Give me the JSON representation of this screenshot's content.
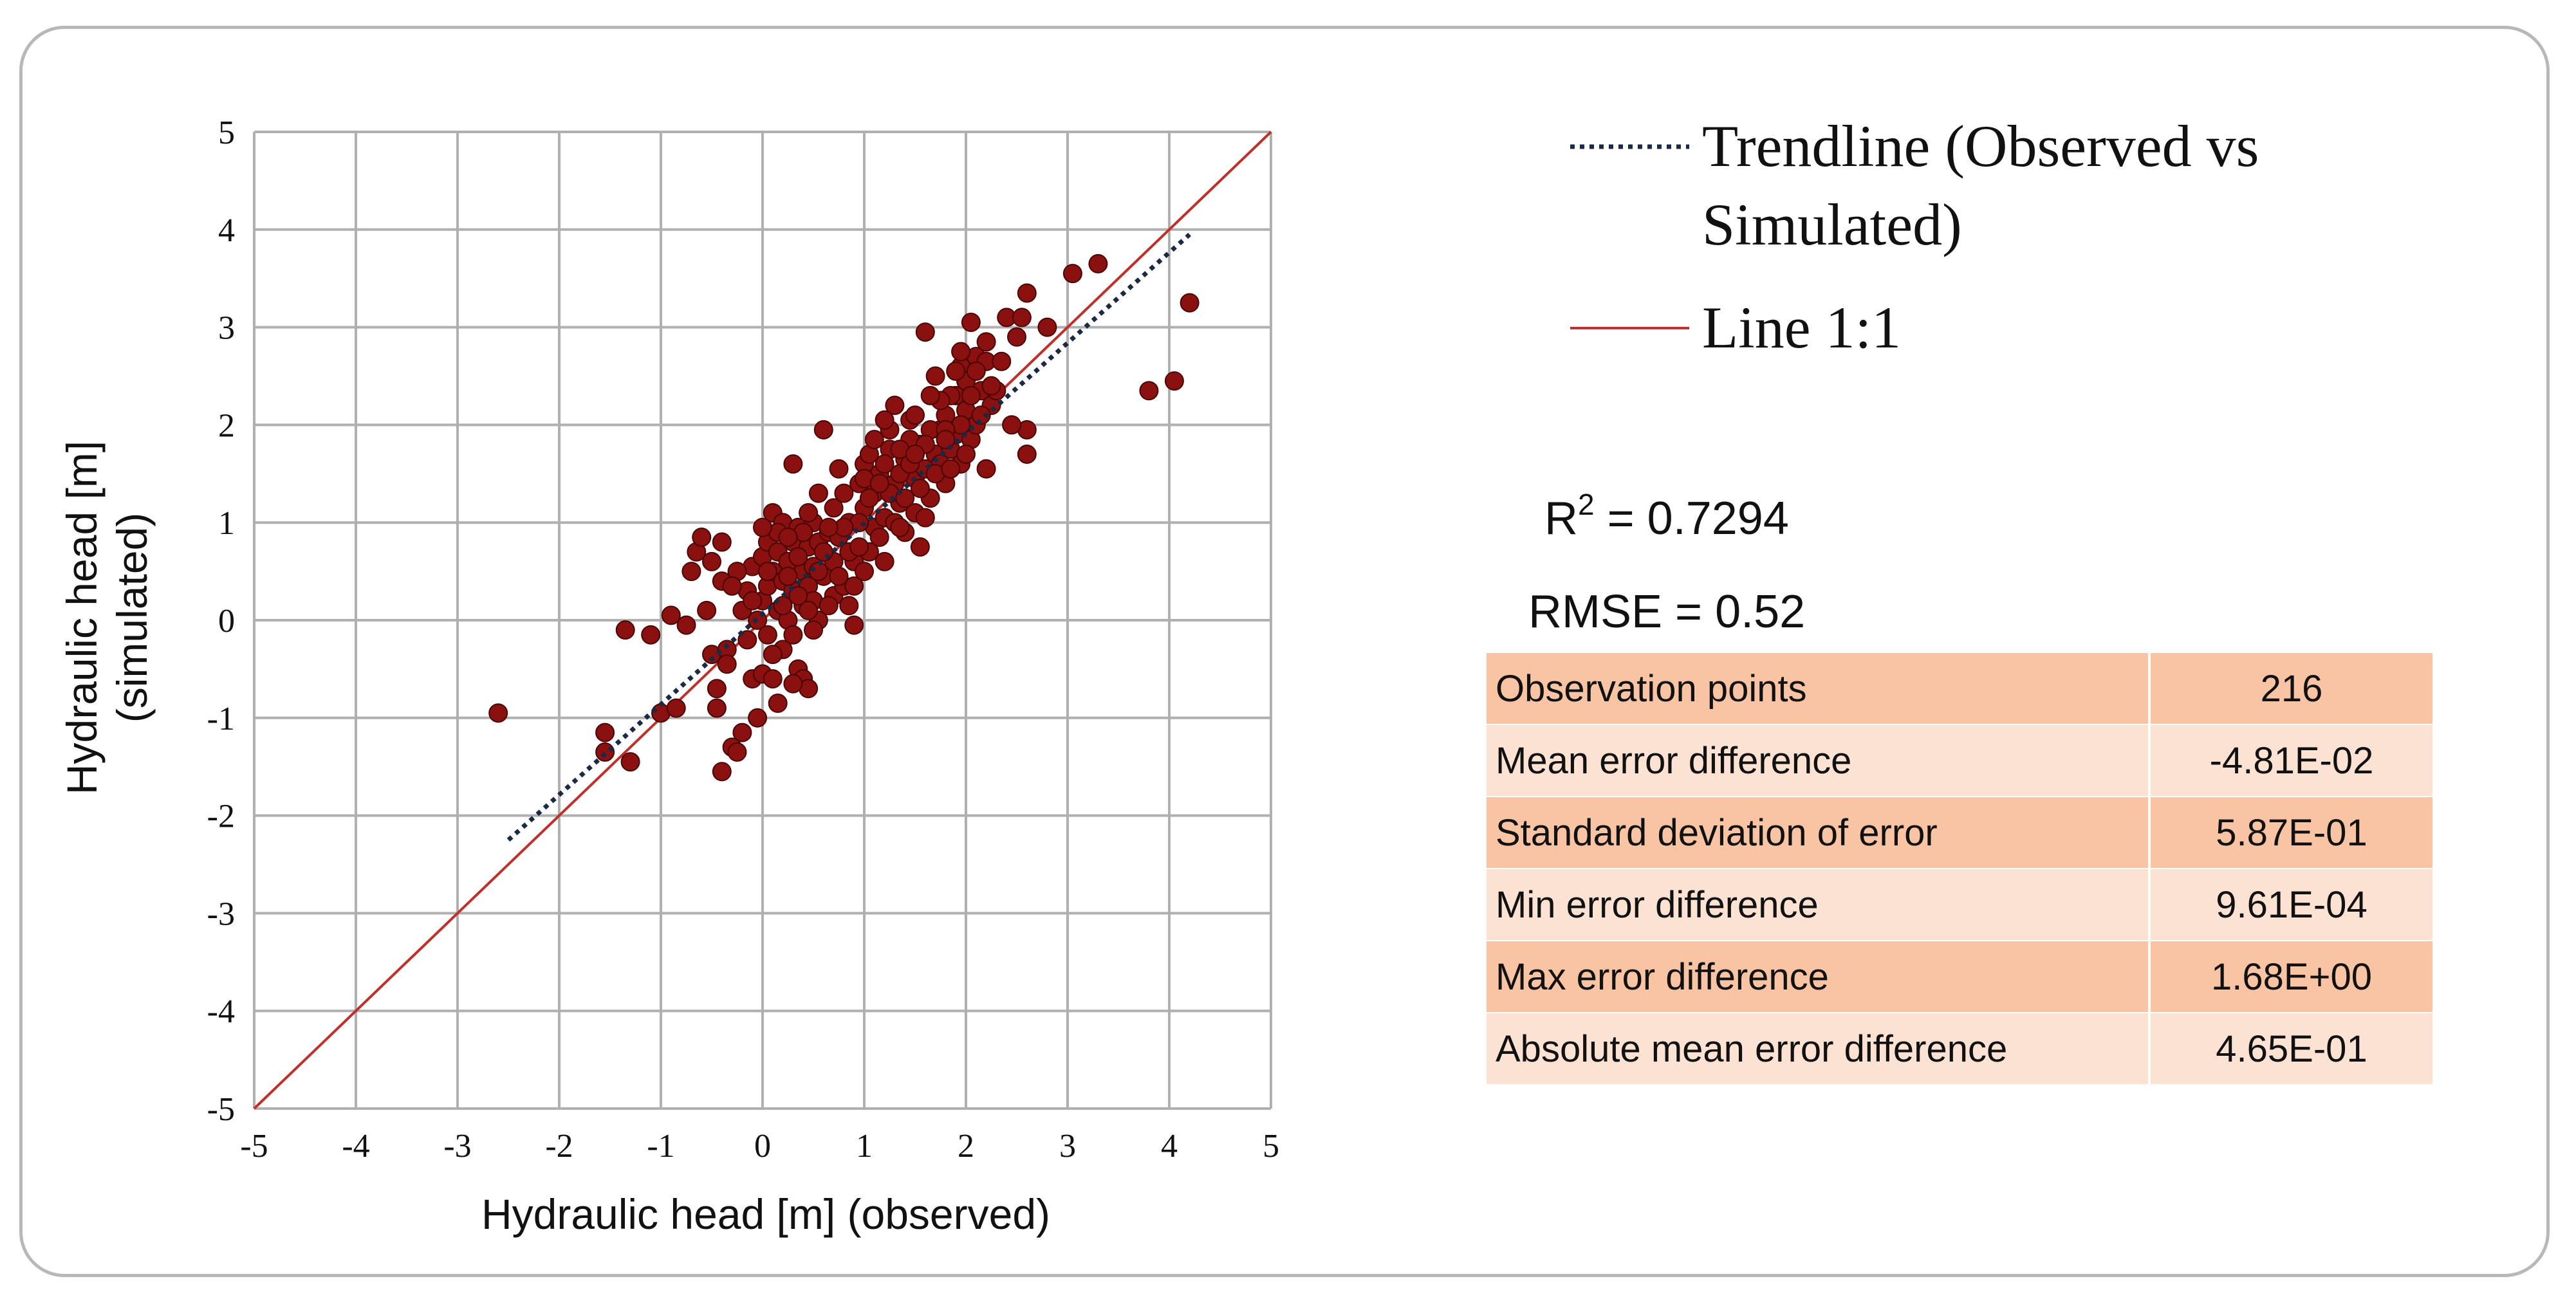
{
  "chart_data": {
    "type": "scatter",
    "xlabel": "Hydraulic head [m] (observed)",
    "ylabel_line1": "Hydraulic head [m]",
    "ylabel_line2": "(simulated)",
    "xlim": [
      -5,
      5
    ],
    "ylim": [
      -5,
      5
    ],
    "xticks": [
      -5,
      -4,
      -3,
      -2,
      -1,
      0,
      1,
      2,
      3,
      4,
      5
    ],
    "yticks": [
      -5,
      -4,
      -3,
      -2,
      -1,
      0,
      1,
      2,
      3,
      4,
      5
    ],
    "grid": true,
    "point_color": "#8b1010",
    "identity_line": {
      "name": "Line 1:1",
      "color": "#c0302a",
      "from": [
        -5,
        -5
      ],
      "to": [
        5,
        5
      ]
    },
    "trendline": {
      "name": "Trendline (Observed vs Simulated)",
      "color": "#1a2a44",
      "from": [
        -2.5,
        -2.25
      ],
      "to": [
        4.2,
        3.95
      ]
    },
    "legend": [
      {
        "label_line1": "Trendline (Observed vs",
        "label_line2": "Simulated)",
        "style": "dotted"
      },
      {
        "label_line1": "Line 1:1",
        "style": "solid"
      }
    ],
    "points": [
      [
        -2.6,
        -0.95
      ],
      [
        -1.55,
        -1.15
      ],
      [
        -1.55,
        -1.35
      ],
      [
        -1.35,
        -0.1
      ],
      [
        -1.3,
        -1.45
      ],
      [
        -1.1,
        -0.15
      ],
      [
        -1.0,
        -0.95
      ],
      [
        -0.9,
        0.05
      ],
      [
        -0.85,
        -0.9
      ],
      [
        -0.75,
        -0.05
      ],
      [
        -0.7,
        0.5
      ],
      [
        -0.65,
        0.7
      ],
      [
        -0.6,
        0.85
      ],
      [
        -0.5,
        0.6
      ],
      [
        -0.5,
        -0.35
      ],
      [
        -0.45,
        -0.7
      ],
      [
        -0.45,
        -0.9
      ],
      [
        -0.4,
        0.8
      ],
      [
        -0.4,
        0.4
      ],
      [
        -0.35,
        -0.3
      ],
      [
        -0.35,
        -0.45
      ],
      [
        -0.4,
        -1.55
      ],
      [
        -0.3,
        -1.3
      ],
      [
        -0.25,
        -1.35
      ],
      [
        -0.2,
        0.1
      ],
      [
        -0.2,
        -1.15
      ],
      [
        -0.15,
        0.3
      ],
      [
        -0.1,
        0.55
      ],
      [
        -0.1,
        -0.6
      ],
      [
        -0.05,
        0.0
      ],
      [
        -0.05,
        -1.0
      ],
      [
        0.0,
        0.65
      ],
      [
        0.0,
        0.2
      ],
      [
        0.0,
        -0.55
      ],
      [
        0.05,
        0.8
      ],
      [
        0.05,
        0.35
      ],
      [
        0.05,
        -0.15
      ],
      [
        0.1,
        1.1
      ],
      [
        0.1,
        0.5
      ],
      [
        0.1,
        -0.6
      ],
      [
        0.15,
        0.7
      ],
      [
        0.15,
        0.1
      ],
      [
        0.15,
        -0.85
      ],
      [
        0.2,
        1.0
      ],
      [
        0.2,
        0.4
      ],
      [
        0.2,
        -0.3
      ],
      [
        0.25,
        0.6
      ],
      [
        0.25,
        0.0
      ],
      [
        0.3,
        1.6
      ],
      [
        0.3,
        0.8
      ],
      [
        0.3,
        0.3
      ],
      [
        0.3,
        -0.15
      ],
      [
        0.35,
        -0.5
      ],
      [
        0.35,
        0.95
      ],
      [
        0.4,
        0.5
      ],
      [
        0.4,
        0.15
      ],
      [
        0.4,
        -0.6
      ],
      [
        0.45,
        0.75
      ],
      [
        0.45,
        0.35
      ],
      [
        0.45,
        -0.7
      ],
      [
        0.5,
        1.0
      ],
      [
        0.5,
        0.55
      ],
      [
        0.5,
        0.2
      ],
      [
        0.55,
        0.8
      ],
      [
        0.55,
        0.0
      ],
      [
        0.6,
        1.95
      ],
      [
        0.6,
        0.45
      ],
      [
        0.65,
        0.9
      ],
      [
        0.7,
        0.6
      ],
      [
        0.7,
        0.25
      ],
      [
        0.75,
        1.55
      ],
      [
        0.75,
        0.85
      ],
      [
        0.8,
        0.35
      ],
      [
        0.85,
        1.0
      ],
      [
        0.9,
        0.6
      ],
      [
        0.9,
        -0.05
      ],
      [
        0.95,
        1.4
      ],
      [
        1.0,
        1.15
      ],
      [
        1.0,
        1.6
      ],
      [
        1.05,
        0.7
      ],
      [
        1.05,
        1.7
      ],
      [
        1.1,
        1.3
      ],
      [
        1.1,
        0.95
      ],
      [
        1.15,
        1.5
      ],
      [
        1.2,
        1.05
      ],
      [
        1.2,
        0.6
      ],
      [
        1.25,
        1.75
      ],
      [
        1.3,
        1.4
      ],
      [
        1.3,
        2.2
      ],
      [
        1.35,
        1.2
      ],
      [
        1.4,
        1.65
      ],
      [
        1.4,
        0.9
      ],
      [
        1.45,
        2.05
      ],
      [
        1.5,
        1.45
      ],
      [
        1.5,
        1.1
      ],
      [
        1.55,
        1.8
      ],
      [
        1.55,
        0.75
      ],
      [
        1.6,
        2.95
      ],
      [
        1.6,
        1.55
      ],
      [
        1.65,
        1.25
      ],
      [
        1.7,
        2.5
      ],
      [
        1.7,
        1.7
      ],
      [
        1.75,
        1.95
      ],
      [
        1.8,
        2.1
      ],
      [
        1.8,
        1.4
      ],
      [
        1.85,
        1.75
      ],
      [
        1.9,
        2.3
      ],
      [
        1.9,
        1.9
      ],
      [
        1.95,
        2.6
      ],
      [
        1.95,
        1.6
      ],
      [
        2.0,
        2.15
      ],
      [
        2.0,
        2.45
      ],
      [
        2.05,
        1.85
      ],
      [
        2.05,
        3.05
      ],
      [
        2.1,
        2.7
      ],
      [
        2.1,
        2.0
      ],
      [
        2.15,
        2.35
      ],
      [
        2.2,
        1.55
      ],
      [
        2.2,
        2.65
      ],
      [
        2.25,
        2.2
      ],
      [
        2.4,
        3.1
      ],
      [
        2.5,
        2.9
      ],
      [
        2.55,
        3.1
      ],
      [
        2.6,
        3.35
      ],
      [
        2.6,
        1.7
      ],
      [
        2.6,
        1.95
      ],
      [
        2.8,
        3.0
      ],
      [
        3.05,
        3.55
      ],
      [
        3.3,
        3.65
      ],
      [
        3.8,
        2.35
      ],
      [
        4.05,
        2.45
      ],
      [
        4.2,
        3.25
      ],
      [
        0.25,
        0.45
      ],
      [
        0.35,
        0.65
      ],
      [
        0.55,
        0.5
      ],
      [
        0.65,
        0.15
      ],
      [
        0.85,
        0.7
      ],
      [
        1.15,
        0.85
      ],
      [
        1.35,
        1.5
      ],
      [
        1.45,
        1.85
      ],
      [
        1.65,
        1.95
      ],
      [
        1.85,
        2.3
      ],
      [
        0.15,
        0.9
      ],
      [
        0.45,
        1.1
      ],
      [
        0.75,
        0.45
      ],
      [
        0.95,
        1.0
      ],
      [
        1.25,
        1.3
      ],
      [
        1.55,
        1.35
      ],
      [
        1.75,
        1.6
      ],
      [
        1.95,
        2.0
      ],
      [
        0.1,
        -0.35
      ],
      [
        0.3,
        -0.65
      ],
      [
        -0.25,
        0.5
      ],
      [
        -0.15,
        -0.2
      ],
      [
        0.6,
        0.7
      ],
      [
        0.8,
        0.95
      ],
      [
        1.0,
        1.45
      ],
      [
        1.2,
        1.6
      ],
      [
        1.4,
        1.25
      ],
      [
        1.6,
        1.8
      ],
      [
        1.8,
        1.95
      ],
      [
        2.0,
        1.7
      ],
      [
        2.1,
        2.55
      ],
      [
        2.3,
        2.35
      ],
      [
        0.2,
        0.15
      ],
      [
        0.4,
        0.9
      ],
      [
        0.7,
        1.15
      ],
      [
        0.9,
        0.35
      ],
      [
        1.1,
        1.85
      ],
      [
        1.3,
        1.0
      ],
      [
        1.5,
        2.1
      ],
      [
        1.7,
        1.5
      ],
      [
        1.9,
        2.55
      ],
      [
        2.05,
        2.3
      ],
      [
        -0.55,
        0.1
      ],
      [
        -0.3,
        0.35
      ],
      [
        0.0,
        0.95
      ],
      [
        0.35,
        0.25
      ],
      [
        0.65,
        0.95
      ],
      [
        1.0,
        0.5
      ],
      [
        1.25,
        1.95
      ],
      [
        1.45,
        1.6
      ],
      [
        1.75,
        2.25
      ],
      [
        2.15,
        2.1
      ],
      [
        0.5,
        -0.1
      ],
      [
        0.8,
        1.3
      ],
      [
        1.15,
        1.4
      ],
      [
        1.35,
        1.75
      ],
      [
        1.65,
        2.3
      ],
      [
        1.85,
        1.55
      ],
      [
        2.25,
        2.4
      ],
      [
        2.45,
        2.0
      ],
      [
        0.05,
        0.5
      ],
      [
        0.25,
        0.85
      ],
      [
        0.55,
        1.3
      ],
      [
        0.85,
        0.15
      ],
      [
        1.05,
        1.25
      ],
      [
        1.35,
        0.95
      ],
      [
        1.6,
        1.05
      ],
      [
        1.95,
        2.75
      ],
      [
        2.35,
        2.65
      ],
      [
        -0.1,
        0.2
      ],
      [
        0.45,
        0.1
      ],
      [
        0.95,
        0.75
      ],
      [
        1.2,
        2.05
      ],
      [
        1.5,
        1.7
      ],
      [
        1.8,
        1.85
      ],
      [
        2.2,
        2.85
      ]
    ],
    "stats": {
      "r2_label": "R",
      "r2_superscript": "2",
      "r2_value": " = 0.7294",
      "rmse": "RMSE = 0.52"
    },
    "table": [
      {
        "label": "Observation points",
        "value": "216"
      },
      {
        "label": "Mean error difference",
        "value": "-4.81E-02"
      },
      {
        "label": "Standard deviation of error",
        "value": "5.87E-01"
      },
      {
        "label": "Min error difference",
        "value": "9.61E-04"
      },
      {
        "label": "Max error difference",
        "value": "1.68E+00"
      },
      {
        "label": "Absolute mean error difference",
        "value": "4.65E-01"
      }
    ]
  }
}
